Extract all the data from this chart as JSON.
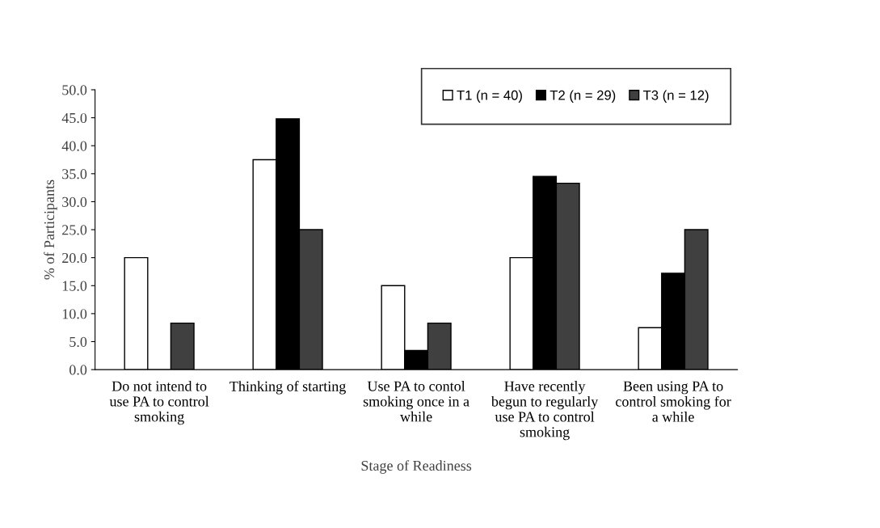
{
  "chart_data": {
    "type": "bar",
    "xlabel": "Stage of Readiness",
    "ylabel": "% of Participants",
    "categories": [
      "Do not intend to\nuse PA to control\nsmoking",
      "Thinking of starting",
      "Use PA to contol\nsmoking once in a\nwhile",
      "Have recently\nbegun to regularly\nuse PA to control\nsmoking",
      "Been using PA to\ncontrol smoking for\na while"
    ],
    "series": [
      {
        "name": "T1 (n = 40)",
        "color": "#ffffff",
        "values": [
          20.0,
          37.5,
          15.0,
          20.0,
          7.5
        ]
      },
      {
        "name": "T2 (n = 29)",
        "color": "#000000",
        "values": [
          0.0,
          44.8,
          3.4,
          34.5,
          17.2
        ]
      },
      {
        "name": "T3 (n = 12)",
        "color": "#404040",
        "values": [
          8.3,
          25.0,
          8.3,
          33.3,
          25.0
        ]
      }
    ],
    "ylim": [
      0,
      50
    ],
    "yticks": [
      {
        "value": 0,
        "label": "0.0"
      },
      {
        "value": 5,
        "label": "5.0"
      },
      {
        "value": 10,
        "label": "10.0"
      },
      {
        "value": 15,
        "label": "15.0"
      },
      {
        "value": 20,
        "label": "20.0"
      },
      {
        "value": 25,
        "label": "25.0"
      },
      {
        "value": 30,
        "label": "30.0"
      },
      {
        "value": 35,
        "label": "35.0"
      },
      {
        "value": 40,
        "label": "40.0"
      },
      {
        "value": 45,
        "label": "45.0"
      },
      {
        "value": 50,
        "label": "50.0"
      }
    ],
    "grid": false,
    "legend": "top right"
  }
}
